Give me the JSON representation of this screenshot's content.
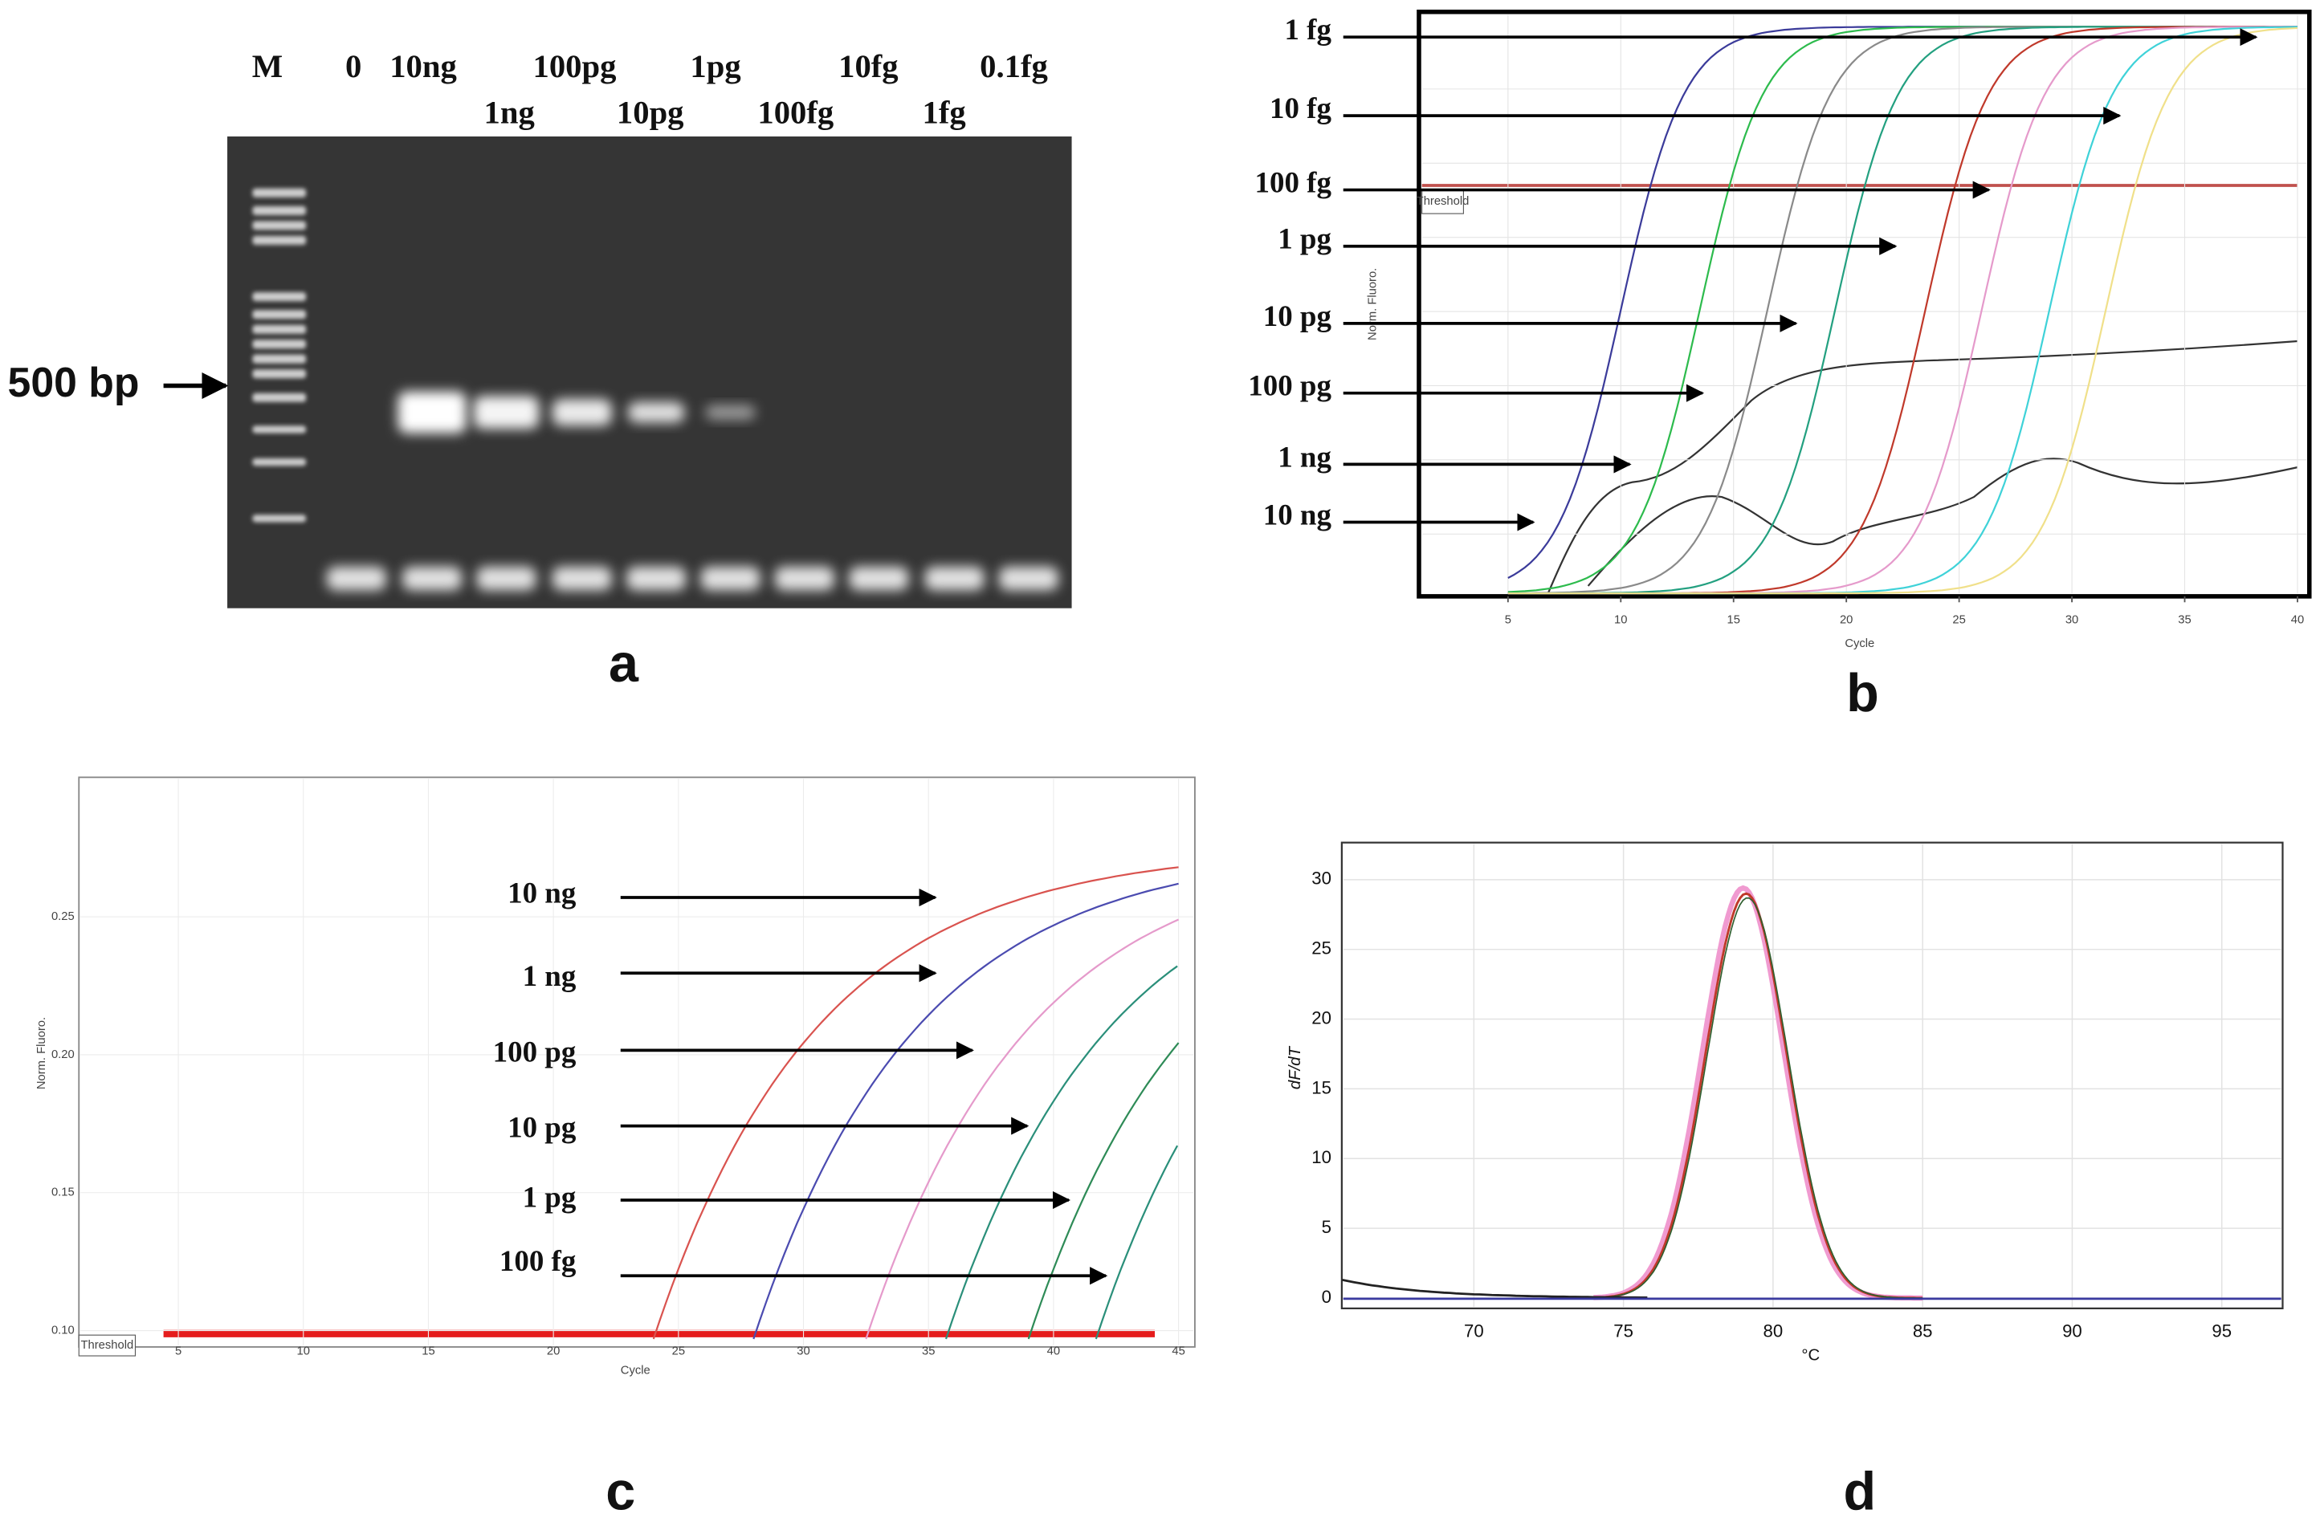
{
  "panels": [
    {
      "label": "a",
      "lanes_top": [
        "M",
        "0",
        "10ng",
        "100pg",
        "1pg",
        "10fg",
        "0.1fg"
      ],
      "lanes_bottom": [
        "1ng",
        "10pg",
        "100fg",
        "1fg"
      ],
      "marker": "500 bp"
    },
    {
      "label": "b",
      "y_label": "Norm. Fluoro.",
      "x_label": "Cycle",
      "xticks": [
        5,
        10,
        15,
        20,
        25,
        30,
        35,
        40
      ],
      "threshold": "Threshold",
      "annotations": [
        "1 fg",
        "10 fg",
        "100 fg",
        "1 pg",
        "10 pg",
        "100 pg",
        "1 ng",
        "10 ng"
      ]
    },
    {
      "label": "c",
      "y_label": "Norm. Fluoro.",
      "x_label": "Cycle",
      "xticks": [
        5,
        10,
        15,
        20,
        25,
        30,
        35,
        40,
        45
      ],
      "yticks": [
        {
          "value": 0.1,
          "label": "0.10"
        },
        {
          "value": 0.15,
          "label": "0.15"
        },
        {
          "value": 0.2,
          "label": "0.20"
        },
        {
          "value": 0.25,
          "label": "0.25"
        }
      ],
      "threshold": "Threshold",
      "annotations": [
        "10 ng",
        "1 ng",
        "100 pg",
        "10 pg",
        "1 pg",
        "100 fg"
      ]
    },
    {
      "label": "d",
      "y_label": "dF/dT",
      "x_label": "°C",
      "xticks": [
        70,
        75,
        80,
        85,
        90,
        95
      ],
      "yticks": [
        0,
        5,
        10,
        15,
        20,
        25,
        30
      ]
    }
  ]
}
